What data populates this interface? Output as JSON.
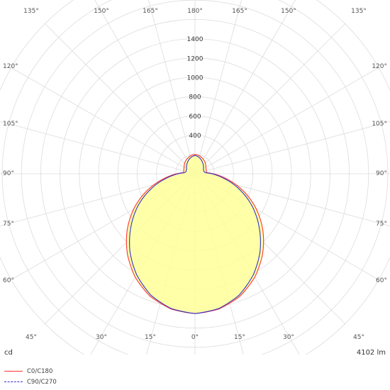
{
  "chart_data": {
    "type": "polar",
    "unit_label": "cd",
    "flux_label": "4102 lm",
    "radial_ticks": [
      400,
      600,
      800,
      1000,
      1200,
      1400
    ],
    "angle_labels": {
      "top": [
        "135°",
        "150°",
        "165°",
        "180°",
        "165°",
        "150°",
        "135°"
      ],
      "left": [
        "120°",
        "105°",
        "90°",
        "75°",
        "60°"
      ],
      "right": [
        "120°",
        "105°",
        "90°",
        "75°",
        "60°"
      ],
      "bottom": [
        "45°",
        "30°",
        "15°",
        "0°",
        "15°",
        "30°",
        "45°"
      ]
    },
    "series": [
      {
        "name": "C0/C180",
        "color": "#ff3333",
        "style": "solid",
        "angles": [
          0,
          10,
          20,
          30,
          40,
          50,
          60,
          70,
          80,
          85,
          90,
          95,
          100,
          105,
          120,
          140,
          160,
          170,
          180
        ],
        "values": [
          1450,
          1425,
          1355,
          1240,
          1090,
          920,
          735,
          540,
          345,
          260,
          190,
          120,
          120,
          120,
          130,
          160,
          185,
          195,
          200
        ]
      },
      {
        "name": "C90/C270",
        "color": "#3333cc",
        "style": "dashed",
        "angles": [
          0,
          10,
          20,
          30,
          40,
          50,
          60,
          70,
          80,
          85,
          90,
          95,
          100,
          105,
          120,
          140,
          160,
          170,
          180
        ],
        "values": [
          1450,
          1420,
          1340,
          1210,
          1050,
          870,
          690,
          500,
          320,
          240,
          175,
          110,
          100,
          95,
          100,
          130,
          165,
          180,
          190
        ]
      }
    ]
  }
}
